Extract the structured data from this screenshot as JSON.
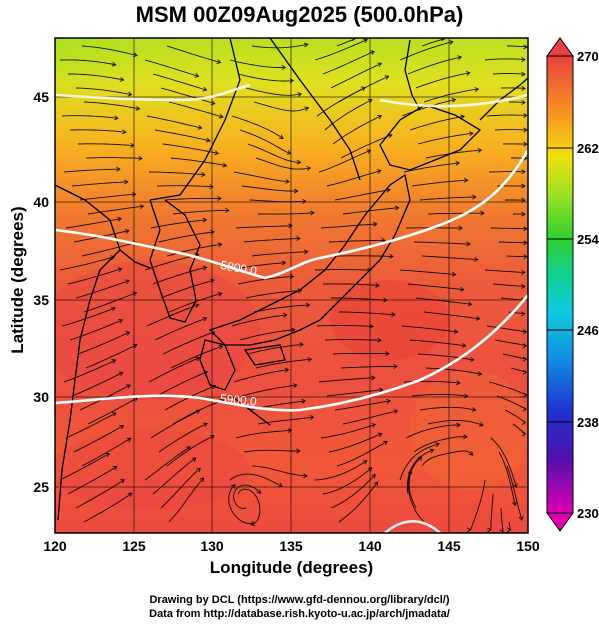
{
  "title": "MSM 00Z09Aug2025 (500.0hPa)",
  "map": {
    "xlabel": "Longitude (degrees)",
    "ylabel": "Latitude  (degrees)",
    "lon_range": [
      120,
      150
    ],
    "lat_range": [
      22.5,
      48
    ],
    "lon_ticks": [
      "120",
      "125",
      "130",
      "135",
      "140",
      "145",
      "150"
    ],
    "lat_ticks": [
      "25",
      "30",
      "35",
      "40",
      "45"
    ],
    "contours": [
      {
        "label": "5800.0"
      },
      {
        "label": "5900.0"
      }
    ]
  },
  "colorbar": {
    "ticks": [
      "270",
      "262",
      "254",
      "246",
      "238",
      "230"
    ],
    "min": 230,
    "max": 270,
    "colors": [
      "#e000b0",
      "#3020c0",
      "#2060e0",
      "#10b0e0",
      "#10d090",
      "#30d030",
      "#90e020",
      "#e8e010",
      "#f8a020",
      "#f06030",
      "#e84040"
    ]
  },
  "credits": {
    "line1": "Drawing by DCL (https://www.gfd-dennou.org/library/dcl/)",
    "line2": "Data from http://database.rish.kyoto-u.ac.jp/arch/jmadata/"
  }
}
